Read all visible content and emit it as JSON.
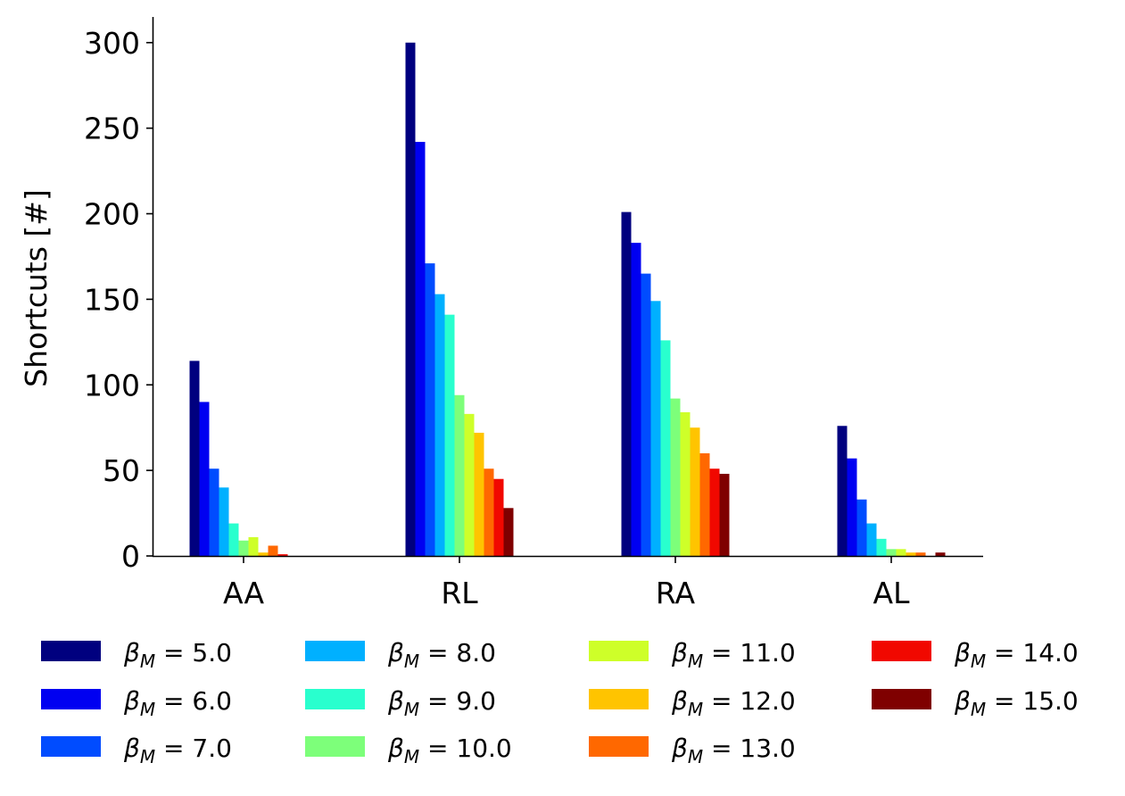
{
  "chart_data": {
    "type": "bar",
    "ylabel": "Shortcuts [#]",
    "xlabel": "",
    "ylim": [
      0,
      315
    ],
    "yticks": [
      "0",
      "50",
      "100",
      "150",
      "200",
      "250",
      "300"
    ],
    "categories": [
      "AA",
      "RL",
      "RA",
      "AL"
    ],
    "legend_position": "bottom",
    "legend_symbol": "β",
    "legend_subscript": "M",
    "legend_operator": "=",
    "series": [
      {
        "name": "5.0",
        "color": "#00007f",
        "values": [
          114,
          300,
          201,
          76
        ]
      },
      {
        "name": "6.0",
        "color": "#0000f1",
        "values": [
          90,
          242,
          183,
          57
        ]
      },
      {
        "name": "7.0",
        "color": "#004cff",
        "values": [
          51,
          171,
          165,
          33
        ]
      },
      {
        "name": "8.0",
        "color": "#00b0ff",
        "values": [
          40,
          153,
          149,
          19
        ]
      },
      {
        "name": "9.0",
        "color": "#29ffce",
        "values": [
          19,
          141,
          126,
          10
        ]
      },
      {
        "name": "10.0",
        "color": "#7dff7a",
        "values": [
          9,
          94,
          92,
          4
        ]
      },
      {
        "name": "11.0",
        "color": "#ceff29",
        "values": [
          11,
          83,
          84,
          4
        ]
      },
      {
        "name": "12.0",
        "color": "#ffc400",
        "values": [
          2,
          72,
          75,
          2
        ]
      },
      {
        "name": "13.0",
        "color": "#ff6800",
        "values": [
          6,
          51,
          60,
          2
        ]
      },
      {
        "name": "14.0",
        "color": "#f10800",
        "values": [
          1,
          45,
          51,
          0
        ]
      },
      {
        "name": "15.0",
        "color": "#7f0000",
        "values": [
          0,
          28,
          48,
          2
        ]
      }
    ]
  }
}
